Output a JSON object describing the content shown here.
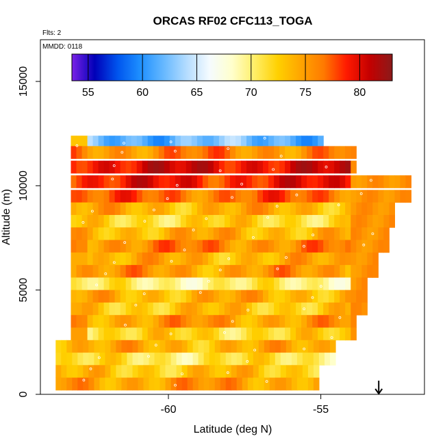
{
  "chart_data": {
    "type": "heatmap",
    "title": "ORCAS RF02 CFC113_TOGA",
    "subtitle": "Flts: 2",
    "annotation": "MMDD: 0118",
    "xlabel": "Latitude (deg N)",
    "ylabel": "Altitude (m)",
    "xlim": [
      -64.2,
      -51.6
    ],
    "ylim": [
      0,
      17000
    ],
    "x_ticks": [
      -60,
      -55
    ],
    "x_tick_labels": [
      "-60",
      "-55"
    ],
    "y_ticks": [
      0,
      5000,
      10000,
      15000
    ],
    "y_tick_labels": [
      "0",
      "5000",
      "10000",
      "15000"
    ],
    "colorbar": {
      "range": [
        53.5,
        83
      ],
      "ticks": [
        55,
        60,
        65,
        70,
        75,
        80
      ],
      "tick_labels": [
        "55",
        "60",
        "65",
        "70",
        "75",
        "80"
      ],
      "colors": [
        "#7b22e6",
        "#0000b8",
        "#0055ee",
        "#1e90ff",
        "#66b8ff",
        "#b3dcff",
        "#f5fbff",
        "#ffffcc",
        "#ffee66",
        "#ffd000",
        "#ffa500",
        "#ff7a00",
        "#ff1a00",
        "#c40000",
        "#8b1a1a"
      ]
    },
    "grid": false,
    "legend": "colorbar at top, inside plot",
    "arrow_marker": {
      "x": -53.1,
      "label": "↓"
    },
    "layers": [
      {
        "alt": 12100,
        "value": 62
      },
      {
        "alt": 11600,
        "value": 76
      },
      {
        "alt": 10900,
        "value": 80
      },
      {
        "alt": 10200,
        "value": 79
      },
      {
        "alt": 9500,
        "value": 77
      },
      {
        "alt": 8900,
        "value": 74
      },
      {
        "alt": 8300,
        "value": 72
      },
      {
        "alt": 7700,
        "value": 74
      },
      {
        "alt": 7100,
        "value": 76
      },
      {
        "alt": 6500,
        "value": 74
      },
      {
        "alt": 5900,
        "value": 75
      },
      {
        "alt": 5300,
        "value": 70
      },
      {
        "alt": 4700,
        "value": 74
      },
      {
        "alt": 4100,
        "value": 73
      },
      {
        "alt": 3500,
        "value": 75
      },
      {
        "alt": 2900,
        "value": 72
      },
      {
        "alt": 2300,
        "value": 74
      },
      {
        "alt": 1700,
        "value": 71
      },
      {
        "alt": 1100,
        "value": 73
      },
      {
        "alt": 500,
        "value": 75
      }
    ]
  }
}
